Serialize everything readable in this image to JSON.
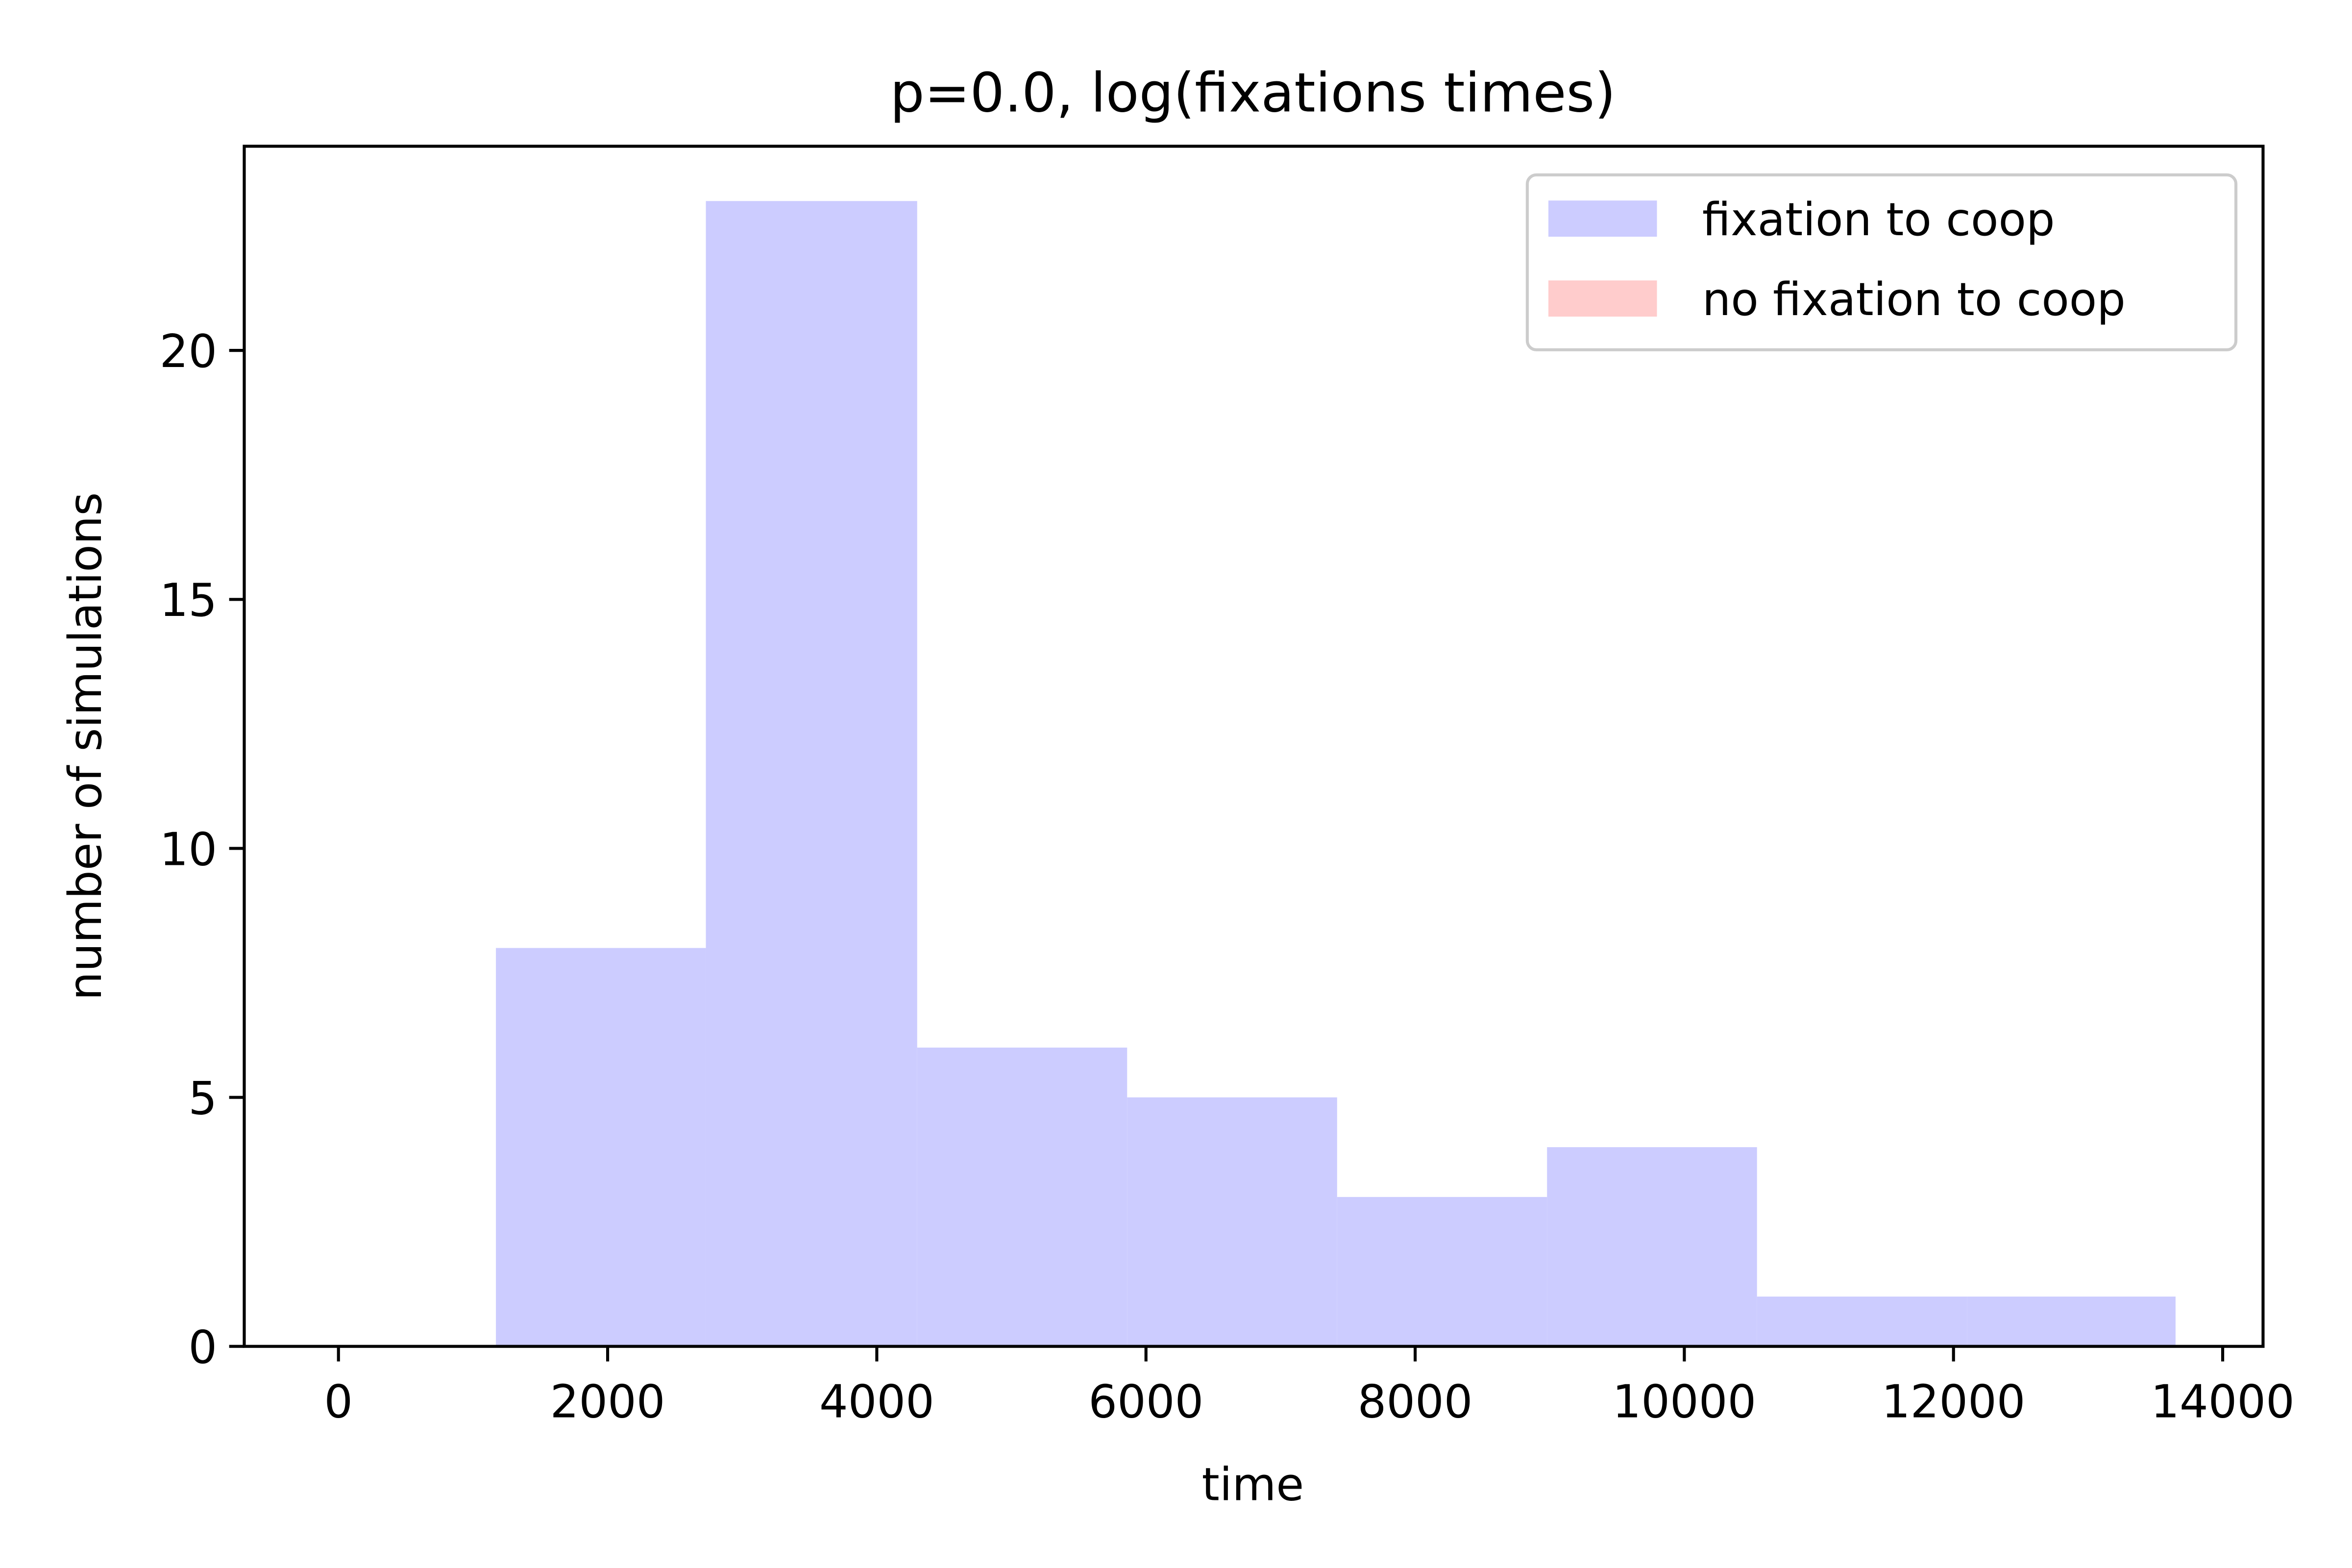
{
  "chart_data": {
    "type": "bar",
    "title": "p=0.0, log(fixations times)",
    "xlabel": "time",
    "ylabel": "number of simulations",
    "xlim": [
      -700,
      14300
    ],
    "ylim": [
      0,
      24.1
    ],
    "x_ticks": [
      0,
      2000,
      4000,
      6000,
      8000,
      10000,
      12000,
      14000
    ],
    "x_tick_labels": [
      "0",
      "2000",
      "4000",
      "6000",
      "8000",
      "10000",
      "12000",
      "14000"
    ],
    "y_ticks": [
      0,
      5,
      10,
      15,
      20
    ],
    "y_tick_labels": [
      "0",
      "5",
      "10",
      "15",
      "20"
    ],
    "bin_edges": [
      1170,
      2730,
      4300,
      5860,
      7420,
      8980,
      10540,
      12100,
      13650
    ],
    "series": [
      {
        "name": "fixation to coop",
        "color": "#ccccff",
        "values": [
          8,
          23,
          6,
          5,
          3,
          4,
          1,
          1
        ]
      },
      {
        "name": "no fixation to coop",
        "color": "#ffcccc",
        "values": []
      }
    ],
    "legend_position": "upper right",
    "grid": false
  }
}
